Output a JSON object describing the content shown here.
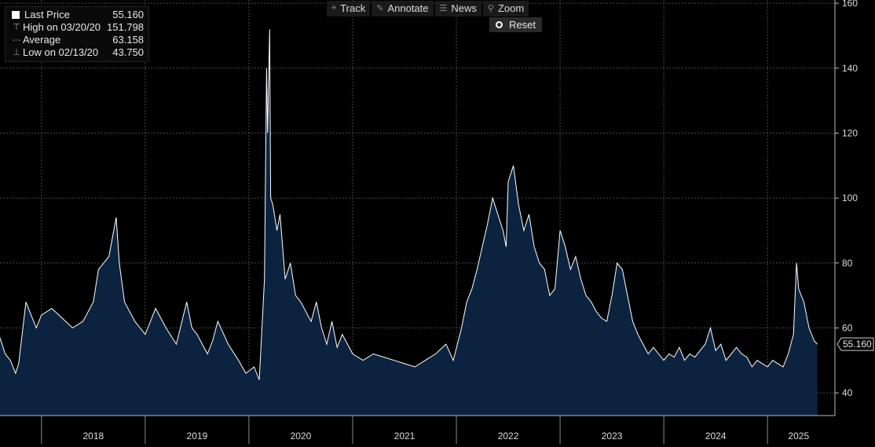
{
  "toolbar": {
    "track": {
      "label": "Track",
      "icon": "crosshair-icon"
    },
    "annotate": {
      "label": "Annotate",
      "icon": "pencil-icon"
    },
    "news": {
      "label": "News",
      "icon": "news-icon"
    },
    "zoom": {
      "label": "Zoom",
      "icon": "magnifier-icon"
    },
    "reset": {
      "label": "Reset"
    }
  },
  "legend": [
    {
      "label": "Last Price",
      "value": "55.160"
    },
    {
      "label": "High on 03/20/20",
      "value": "151.798"
    },
    {
      "label": "Average",
      "value": "63.158"
    },
    {
      "label": "Low on 02/13/20",
      "value": "43.750"
    }
  ],
  "last_price_tag": "55.160",
  "colors": {
    "background": "#000000",
    "line": "#ffffff",
    "fill": "#0c2340",
    "grid": "#4a4a4a"
  },
  "chart_data": {
    "type": "area",
    "title": "",
    "xlabel": "",
    "ylabel": "",
    "ylim": [
      33,
      161
    ],
    "xlim": [
      2017.6,
      2025.65
    ],
    "y_ticks": [
      40,
      60,
      80,
      100,
      120,
      140,
      160
    ],
    "x_year_labels": [
      "2018",
      "2019",
      "2020",
      "2021",
      "2022",
      "2023",
      "2024",
      "2025"
    ],
    "x_year_centers": [
      2018.5,
      2019.5,
      2020.5,
      2021.5,
      2022.5,
      2023.5,
      2024.5,
      2025.3
    ],
    "x_year_boundaries": [
      2018,
      2019,
      2020,
      2021,
      2022,
      2023,
      2024,
      2025
    ],
    "series": [
      {
        "name": "Last Price",
        "x": [
          2017.6,
          2017.65,
          2017.7,
          2017.75,
          2017.78,
          2017.85,
          2017.95,
          2018.0,
          2018.1,
          2018.2,
          2018.3,
          2018.4,
          2018.5,
          2018.55,
          2018.65,
          2018.72,
          2018.75,
          2018.8,
          2018.9,
          2019.0,
          2019.1,
          2019.2,
          2019.3,
          2019.4,
          2019.45,
          2019.5,
          2019.6,
          2019.65,
          2019.7,
          2019.8,
          2019.9,
          2019.97,
          2020.05,
          2020.1,
          2020.15,
          2020.17,
          2020.18,
          2020.2,
          2020.21,
          2020.23,
          2020.27,
          2020.3,
          2020.35,
          2020.4,
          2020.45,
          2020.5,
          2020.55,
          2020.6,
          2020.65,
          2020.7,
          2020.75,
          2020.8,
          2020.85,
          2020.9,
          2021.0,
          2021.1,
          2021.2,
          2021.3,
          2021.4,
          2021.5,
          2021.6,
          2021.7,
          2021.8,
          2021.9,
          2021.97,
          2022.05,
          2022.1,
          2022.15,
          2022.2,
          2022.25,
          2022.3,
          2022.35,
          2022.4,
          2022.45,
          2022.48,
          2022.5,
          2022.55,
          2022.6,
          2022.65,
          2022.7,
          2022.75,
          2022.8,
          2022.85,
          2022.9,
          2022.95,
          2023.0,
          2023.05,
          2023.1,
          2023.15,
          2023.2,
          2023.25,
          2023.3,
          2023.35,
          2023.4,
          2023.45,
          2023.5,
          2023.55,
          2023.6,
          2023.65,
          2023.7,
          2023.75,
          2023.8,
          2023.85,
          2023.9,
          2023.95,
          2024.0,
          2024.05,
          2024.1,
          2024.15,
          2024.2,
          2024.25,
          2024.3,
          2024.35,
          2024.4,
          2024.45,
          2024.5,
          2024.55,
          2024.6,
          2024.65,
          2024.7,
          2024.75,
          2024.8,
          2024.85,
          2024.9,
          2024.95,
          2025.0,
          2025.05,
          2025.1,
          2025.15,
          2025.2,
          2025.25,
          2025.28,
          2025.3,
          2025.35,
          2025.4,
          2025.45,
          2025.48
        ],
        "values": [
          57,
          52,
          50,
          46,
          49,
          68,
          60,
          64,
          66,
          63,
          60,
          62,
          68,
          78,
          82,
          94,
          80,
          68,
          62,
          58,
          66,
          60,
          55,
          68,
          60,
          58,
          52,
          56,
          62,
          55,
          50,
          46,
          48,
          44,
          75,
          140,
          120,
          152,
          100,
          98,
          90,
          95,
          75,
          80,
          70,
          68,
          65,
          62,
          68,
          60,
          55,
          62,
          54,
          58,
          52,
          50,
          52,
          51,
          50,
          49,
          48,
          50,
          52,
          55,
          50,
          60,
          68,
          72,
          78,
          85,
          92,
          100,
          95,
          90,
          85,
          105,
          110,
          98,
          90,
          95,
          85,
          80,
          78,
          70,
          72,
          90,
          85,
          78,
          82,
          75,
          70,
          68,
          65,
          63,
          62,
          70,
          80,
          78,
          70,
          62,
          58,
          55,
          52,
          54,
          52,
          50,
          52,
          51,
          54,
          50,
          52,
          51,
          53,
          55,
          60,
          53,
          55,
          50,
          52,
          54,
          52,
          51,
          48,
          50,
          49,
          48,
          50,
          49,
          48,
          52,
          58,
          80,
          72,
          68,
          60,
          56,
          55
        ]
      }
    ]
  }
}
